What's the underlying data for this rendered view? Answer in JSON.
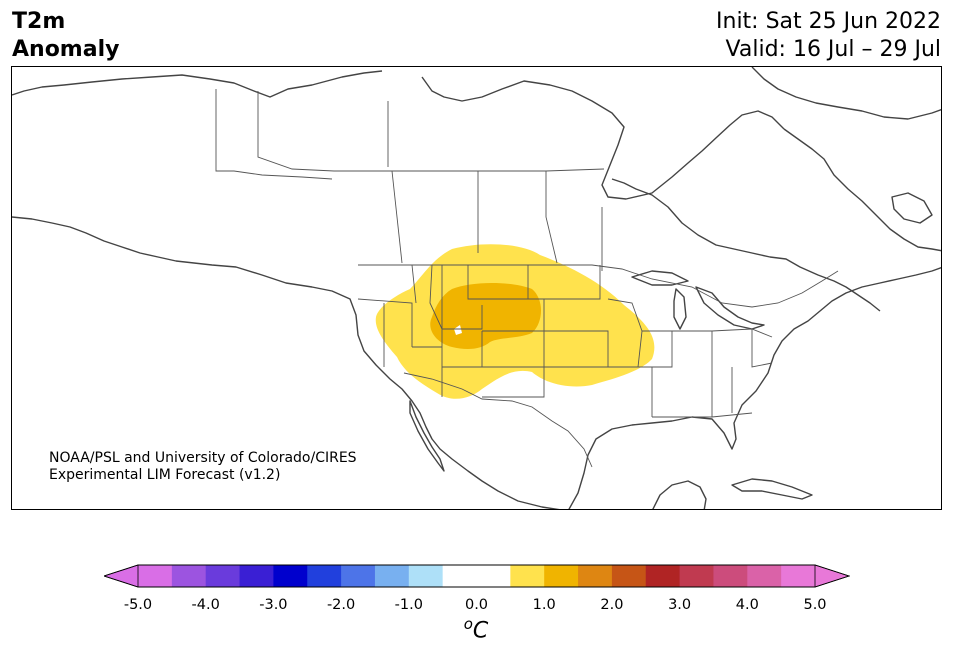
{
  "header": {
    "variable": "T2m",
    "subtitle": "Anomaly",
    "init": "Init: Sat 25 Jun 2022",
    "valid": "Valid: 16 Jul – 29 Jul"
  },
  "credit": {
    "line1": "NOAA/PSL and University of Colorado/CIRES",
    "line2": "Experimental LIM Forecast (v1.2)"
  },
  "colorbar": {
    "unit_sup": "o",
    "unit": "C",
    "ticks": [
      "-5.0",
      "-4.0",
      "-3.0",
      "-2.0",
      "-1.0",
      "0.0",
      "1.0",
      "2.0",
      "3.0",
      "4.0",
      "5.0"
    ],
    "colors": [
      "#d96ee6",
      "#9c54e0",
      "#6a3bdc",
      "#3a1fd4",
      "#0000cd",
      "#2140dd",
      "#4d74e8",
      "#78b0f0",
      "#aee0f8",
      "#ffffff",
      "#ffffff",
      "#ffe24d",
      "#f0b400",
      "#de8612",
      "#c65516",
      "#b02424",
      "#c03a50",
      "#cc4c7c",
      "#da62a8",
      "#e878d8"
    ],
    "under_color": "#d96ee6",
    "over_color": "#e878d8"
  },
  "map": {
    "anomaly_colors": {
      "weak": "#ffe24d",
      "moderate": "#f0b400"
    }
  }
}
